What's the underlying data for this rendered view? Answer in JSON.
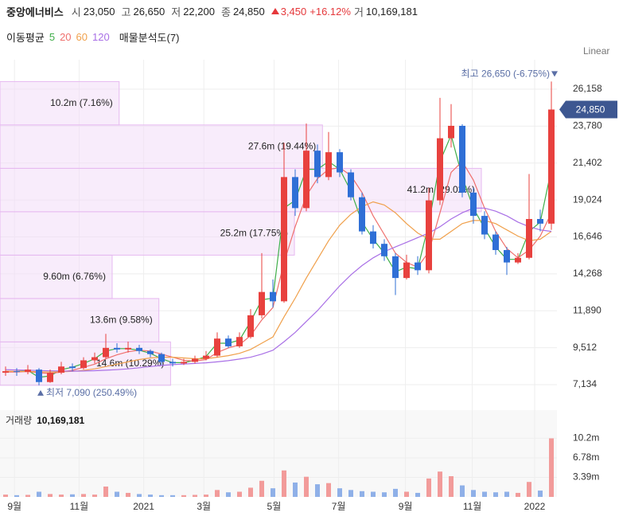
{
  "quote": {
    "name": "중앙에너비스",
    "fields": [
      {
        "label": "시",
        "value": "23,050"
      },
      {
        "label": "고",
        "value": "26,650"
      },
      {
        "label": "저",
        "value": "22,200"
      },
      {
        "label": "종",
        "value": "24,850"
      }
    ],
    "change": {
      "value": "3,450",
      "percent": "+16.12%"
    },
    "volume": {
      "label": "거",
      "value": "10,169,181"
    }
  },
  "chart_data": [
    {
      "type": "candlestick",
      "legend_title": "이동평균",
      "scale_label": "Linear",
      "up_color": "#e8413e",
      "down_color": "#2f6fd6",
      "x": [
        0,
        1,
        2,
        3,
        4,
        5,
        6,
        7,
        8,
        9,
        10,
        11,
        12,
        13,
        14,
        15,
        16,
        17,
        18,
        19,
        20,
        21,
        22,
        23,
        24,
        25,
        26,
        27,
        28,
        29,
        30,
        31,
        32,
        33,
        34,
        35,
        36,
        37,
        38,
        39,
        40,
        41,
        42,
        43,
        44,
        45,
        46,
        47,
        48,
        49
      ],
      "xlim": [
        -0.5,
        49.5
      ],
      "open": [
        7900,
        8000,
        7950,
        8100,
        7300,
        7900,
        8300,
        8200,
        8700,
        8900,
        9500,
        9400,
        9500,
        9300,
        9100,
        8600,
        8500,
        8600,
        8800,
        9000,
        10100,
        9600,
        10200,
        11600,
        13100,
        12500,
        20500,
        18500,
        22200,
        20500,
        22100,
        20800,
        19200,
        17000,
        16200,
        15400,
        14000,
        15000,
        14500,
        19000,
        23000,
        23800,
        19500,
        18000,
        16800,
        15800,
        15000,
        15300,
        17800,
        17500
      ],
      "high": [
        8300,
        8200,
        8400,
        8200,
        8100,
        8600,
        8500,
        8900,
        9200,
        10400,
        9800,
        9900,
        9700,
        9400,
        9200,
        8800,
        8800,
        9000,
        9300,
        10500,
        10300,
        10500,
        12000,
        15600,
        13900,
        22700,
        21000,
        23950,
        22600,
        23400,
        22300,
        21000,
        19500,
        17400,
        16500,
        15600,
        15500,
        15400,
        19800,
        25600,
        25200,
        23900,
        19800,
        18300,
        17000,
        16000,
        15600,
        20700,
        18400,
        26650
      ],
      "low": [
        7700,
        7700,
        7800,
        7090,
        7250,
        7800,
        8000,
        8100,
        8500,
        8800,
        9200,
        9200,
        9100,
        8900,
        8400,
        8300,
        8400,
        8500,
        8700,
        8900,
        9500,
        9500,
        10100,
        11400,
        12100,
        12400,
        18000,
        18300,
        20100,
        20300,
        20500,
        19000,
        16800,
        15900,
        15100,
        12900,
        13900,
        14200,
        14300,
        18700,
        22400,
        19200,
        17500,
        16500,
        15500,
        14200,
        14900,
        15200,
        17000,
        17100
      ],
      "close": [
        8000,
        7950,
        8100,
        7300,
        7900,
        8300,
        8200,
        8700,
        8900,
        9500,
        9400,
        9500,
        9300,
        9100,
        8600,
        8500,
        8600,
        8800,
        9000,
        10100,
        9600,
        10200,
        11600,
        13100,
        12500,
        20500,
        18500,
        22200,
        20500,
        22100,
        20800,
        19200,
        17000,
        16200,
        15400,
        14000,
        15000,
        14500,
        19000,
        23000,
        23800,
        19500,
        18000,
        16800,
        15800,
        15000,
        15300,
        17800,
        17500,
        24850
      ],
      "series": [
        {
          "name": "5",
          "color": "#3fae49",
          "values": [
            7950,
            7980,
            8050,
            7600,
            7700,
            8100,
            8250,
            8500,
            8800,
            9300,
            9450,
            9450,
            9350,
            9150,
            8800,
            8550,
            8550,
            8700,
            8950,
            9800,
            9800,
            10000,
            11200,
            12600,
            12700,
            18500,
            19000,
            21000,
            21000,
            21500,
            21000,
            19600,
            17600,
            16500,
            15600,
            14400,
            14700,
            14600,
            17500,
            21500,
            23200,
            20500,
            18500,
            17200,
            16000,
            15200,
            15200,
            17000,
            17600,
            21000
          ]
        },
        {
          "name": "20",
          "color": "#ef6f6c",
          "values": [
            7950,
            7950,
            7980,
            7900,
            7850,
            7950,
            8050,
            8250,
            8450,
            8800,
            9050,
            9250,
            9350,
            9300,
            9100,
            8900,
            8700,
            8650,
            8750,
            9200,
            9500,
            9700,
            10300,
            11300,
            12100,
            15000,
            17300,
            19300,
            20400,
            21000,
            21100,
            20600,
            19500,
            18000,
            16800,
            15600,
            15000,
            14700,
            15700,
            18200,
            20800,
            21500,
            20300,
            18500,
            17000,
            15900,
            15300,
            15800,
            16700,
            18200
          ]
        },
        {
          "name": "60",
          "color": "#f0a04b",
          "values": [
            8000,
            7990,
            7980,
            7960,
            7950,
            7960,
            7990,
            8050,
            8150,
            8300,
            8450,
            8600,
            8750,
            8850,
            8900,
            8900,
            8850,
            8800,
            8800,
            8900,
            9000,
            9150,
            9400,
            9800,
            10200,
            11500,
            12700,
            14000,
            15200,
            16400,
            17400,
            18100,
            18600,
            18900,
            18700,
            18200,
            17500,
            16900,
            16500,
            16500,
            17000,
            17500,
            17700,
            17700,
            17500,
            17100,
            16700,
            16400,
            16500,
            17000
          ]
        },
        {
          "name": "120",
          "color": "#a970e6",
          "values": [
            8100,
            8080,
            8060,
            8040,
            8020,
            8010,
            8000,
            8010,
            8030,
            8060,
            8100,
            8150,
            8220,
            8300,
            8370,
            8420,
            8460,
            8500,
            8540,
            8600,
            8680,
            8780,
            8900,
            9100,
            9350,
            9900,
            10500,
            11200,
            11900,
            12700,
            13500,
            14200,
            14800,
            15300,
            15700,
            16000,
            16300,
            16600,
            16900,
            17300,
            17800,
            18200,
            18500,
            18500,
            18300,
            18000,
            17600,
            17300,
            17100,
            17000
          ]
        }
      ],
      "ylim": [
        6006,
        27030
      ],
      "yticks": [
        {
          "value": 7134,
          "label": "7,134"
        },
        {
          "value": 9512,
          "label": "9,512"
        },
        {
          "value": 11890,
          "label": "11,890"
        },
        {
          "value": 14268,
          "label": "14,268"
        },
        {
          "value": 16646,
          "label": "16,646"
        },
        {
          "value": 19024,
          "label": "19,024"
        },
        {
          "value": 21402,
          "label": "21,402"
        },
        {
          "value": 23780,
          "label": "23,780"
        },
        {
          "value": 26158,
          "label": "26,158"
        }
      ],
      "grid": true,
      "profile": {
        "name": "매물분석도(7)",
        "color": "#f3dcf8",
        "values": [
          14600000,
          13600000,
          9600000,
          25200000,
          41200000,
          27600000,
          10200000
        ],
        "value_labels": [
          "14.6m (10.29%)",
          "13.6m (9.58%)",
          "9.60m (6.76%)",
          "25.2m (17.75%)",
          "41.2m (29.02%)",
          "27.6m (19.44%)",
          "10.2m (7.16%)"
        ]
      },
      "annotations": {
        "high": {
          "value": 26650,
          "label": "최고 26,650 (-6.75%)"
        },
        "low": {
          "value": 7090,
          "label": "최저 7,090 (250.49%)"
        },
        "last": {
          "value": 24850,
          "label": "24,850"
        }
      }
    },
    {
      "type": "bar",
      "title": "거래량",
      "summary": "10,169,181",
      "x": [
        0,
        1,
        2,
        3,
        4,
        5,
        6,
        7,
        8,
        9,
        10,
        11,
        12,
        13,
        14,
        15,
        16,
        17,
        18,
        19,
        20,
        21,
        22,
        23,
        24,
        25,
        26,
        27,
        28,
        29,
        30,
        31,
        32,
        33,
        34,
        35,
        36,
        37,
        38,
        39,
        40,
        41,
        42,
        43,
        44,
        45,
        46,
        47,
        48,
        49
      ],
      "xlim": [
        -0.5,
        49.5
      ],
      "values": [
        400000,
        300000,
        350000,
        900000,
        500000,
        400000,
        450000,
        500000,
        400000,
        1800000,
        900000,
        700000,
        500000,
        400000,
        300000,
        300000,
        300000,
        350000,
        400000,
        1200000,
        800000,
        900000,
        1600000,
        2800000,
        1500000,
        4600000,
        2500000,
        3500000,
        2200000,
        2400000,
        1500000,
        1200000,
        1000000,
        900000,
        800000,
        1400000,
        900000,
        700000,
        3200000,
        4400000,
        3600000,
        2000000,
        1200000,
        900000,
        800000,
        900000,
        700000,
        2600000,
        1100000,
        10169181
      ],
      "ylim": [
        0,
        15080000
      ],
      "yticks": [
        {
          "value": 3390000,
          "label": "3.39m"
        },
        {
          "value": 6780000,
          "label": "6.78m"
        },
        {
          "value": 10200000,
          "label": "10.2m"
        }
      ],
      "xticks": [
        {
          "value": 0.8,
          "label": "9월"
        },
        {
          "value": 6.6,
          "label": "11월"
        },
        {
          "value": 12.4,
          "label": "2021"
        },
        {
          "value": 17.8,
          "label": "3월"
        },
        {
          "value": 24.1,
          "label": "5월"
        },
        {
          "value": 29.9,
          "label": "7월"
        },
        {
          "value": 35.9,
          "label": "9월"
        },
        {
          "value": 41.9,
          "label": "11월"
        },
        {
          "value": 47.5,
          "label": "2022"
        }
      ]
    }
  ]
}
